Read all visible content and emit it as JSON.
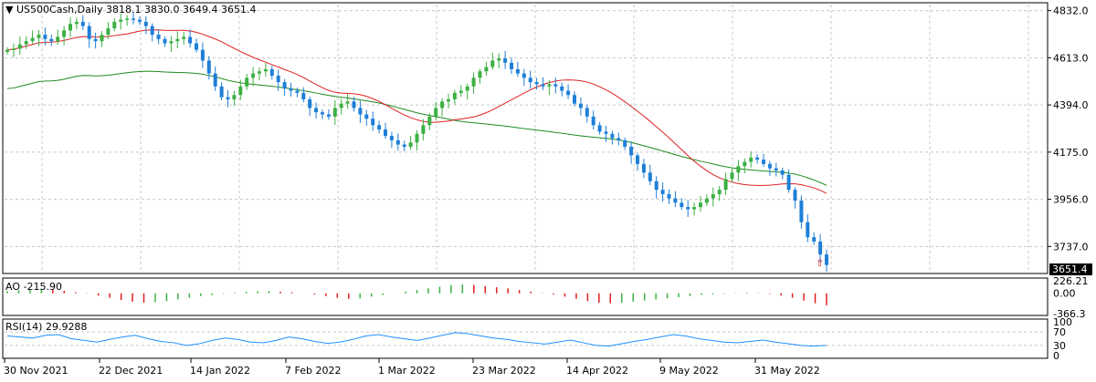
{
  "main": {
    "symbol_label": "US500Cash,Daily",
    "ohlc": "3818.1 3830.0 3649.4 3651.4",
    "ylim": [
      3620,
      4860
    ],
    "y_ticks": [
      "4832.0",
      "4613.0",
      "4394.0",
      "4175.0",
      "3956.0",
      "3737.0"
    ],
    "y_tick_values": [
      4832,
      4613,
      4394,
      4175,
      3956,
      3737
    ],
    "current_price": "3651.4",
    "colors": {
      "bull": "#3cb043",
      "bear": "#1e7fd8",
      "ma_fast": "#e02020",
      "ma_slow": "#1f8a1f"
    }
  },
  "ao_panel": {
    "label": "AO -215.90",
    "y_ticks": [
      "226.21",
      "0.00",
      "-366.3"
    ],
    "y_tick_values": [
      226.21,
      0,
      -366.3
    ]
  },
  "rsi_panel": {
    "label": "RSI(14) 29.9288",
    "y_ticks": [
      "100",
      "70",
      "30",
      "0"
    ],
    "y_tick_values": [
      100,
      70,
      30,
      0
    ]
  },
  "x_axis": {
    "labels": [
      "30 Nov 2021",
      "22 Dec 2021",
      "14 Jan 2022",
      "7 Feb 2022",
      "1 Mar 2022",
      "23 Mar 2022",
      "14 Apr 2022",
      "9 May 2022",
      "31 May 2022"
    ]
  },
  "chart_data": {
    "type": "candlestick",
    "title": "US500Cash,Daily",
    "close_series": [
      4650,
      4655,
      4675,
      4690,
      4705,
      4720,
      4700,
      4690,
      4710,
      4740,
      4770,
      4780,
      4760,
      4700,
      4690,
      4720,
      4750,
      4780,
      4790,
      4795,
      4790,
      4780,
      4760,
      4720,
      4700,
      4680,
      4690,
      4700,
      4710,
      4680,
      4650,
      4600,
      4540,
      4480,
      4430,
      4420,
      4440,
      4480,
      4520,
      4540,
      4550,
      4560,
      4530,
      4500,
      4470,
      4460,
      4450,
      4420,
      4380,
      4360,
      4350,
      4340,
      4380,
      4400,
      4410,
      4380,
      4350,
      4330,
      4300,
      4280,
      4250,
      4230,
      4210,
      4200,
      4220,
      4260,
      4300,
      4340,
      4380,
      4410,
      4420,
      4450,
      4460,
      4480,
      4520,
      4550,
      4570,
      4600,
      4610,
      4590,
      4560,
      4540,
      4520,
      4500,
      4490,
      4480,
      4490,
      4480,
      4460,
      4440,
      4400,
      4380,
      4340,
      4300,
      4270,
      4260,
      4240,
      4230,
      4200,
      4160,
      4120,
      4080,
      4040,
      4000,
      3980,
      3960,
      3940,
      3920,
      3910,
      3920,
      3940,
      3960,
      3980,
      4000,
      4050,
      4080,
      4110,
      4130,
      4150,
      4140,
      4120,
      4100,
      4090,
      4070,
      4000,
      3950,
      3850,
      3780,
      3760,
      3700,
      3651
    ],
    "moving_averages": [
      "fast (red)",
      "slow (green)"
    ],
    "ao_values": [
      40,
      55,
      70,
      85,
      70,
      45,
      20,
      -5,
      -40,
      -80,
      -120,
      -150,
      -170,
      -160,
      -140,
      -110,
      -80,
      -50,
      -30,
      -10,
      10,
      25,
      35,
      40,
      30,
      20,
      0,
      -20,
      -50,
      -80,
      -100,
      -90,
      -60,
      -30,
      0,
      30,
      60,
      90,
      120,
      150,
      160,
      150,
      130,
      110,
      90,
      60,
      30,
      5,
      -20,
      -60,
      -100,
      -140,
      -170,
      -180,
      -170,
      -150,
      -130,
      -110,
      -90,
      -70,
      -50,
      -30,
      -20,
      -10,
      5,
      10,
      5,
      -10,
      -40,
      -80,
      -130,
      -180,
      -216
    ],
    "rsi_values": [
      58,
      55,
      52,
      60,
      62,
      50,
      45,
      40,
      48,
      55,
      60,
      50,
      42,
      38,
      30,
      35,
      45,
      52,
      48,
      40,
      38,
      45,
      55,
      50,
      42,
      36,
      40,
      48,
      58,
      62,
      55,
      50,
      45,
      52,
      60,
      68,
      65,
      58,
      52,
      48,
      42,
      38,
      34,
      40,
      46,
      38,
      30,
      28,
      35,
      42,
      48,
      55,
      62,
      58,
      50,
      45,
      40,
      38,
      42,
      46,
      40,
      35,
      30,
      28,
      30
    ],
    "ylim": [
      3620,
      4860
    ]
  }
}
